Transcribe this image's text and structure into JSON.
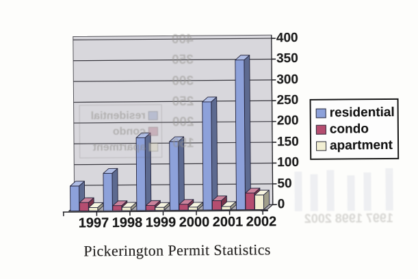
{
  "title": "Pickerington Permit Statistics",
  "chart_data": {
    "type": "bar",
    "style": "3d-clustered",
    "title": "Pickerington Permit Statistics",
    "xlabel": "",
    "ylabel": "",
    "categories": [
      "1997",
      "1998",
      "1999",
      "2000",
      "2001",
      "2002"
    ],
    "series": [
      {
        "name": "residential",
        "color": "#8da1da",
        "values": [
          60,
          90,
          175,
          165,
          260,
          360
        ]
      },
      {
        "name": "condo",
        "color": "#b54d70",
        "values": [
          20,
          12,
          12,
          14,
          22,
          40
        ]
      },
      {
        "name": "apartment",
        "color": "#f2efd3",
        "values": [
          8,
          8,
          7,
          7,
          8,
          35
        ]
      }
    ],
    "ylim": [
      0,
      400
    ],
    "ytick_step": 50,
    "yticks": [
      "0",
      "50",
      "100",
      "150",
      "200",
      "250",
      "300",
      "350",
      "400"
    ],
    "grid": true,
    "legend_position": "right",
    "colors": {
      "wall": "#d8d7dc",
      "floor": "#aeadb3",
      "grid": "#3a3940",
      "axis": "#1f1f24",
      "wall_border": "#55545a"
    }
  },
  "legend": {
    "items": [
      "residential",
      "condo",
      "apartment"
    ]
  },
  "ghost": {
    "y_labels": [
      "400",
      "350",
      "300",
      "250",
      "200",
      "150"
    ],
    "legend_labels": [
      "residential",
      "condo",
      "apartment"
    ],
    "year_text": "1997 1998 2002"
  }
}
